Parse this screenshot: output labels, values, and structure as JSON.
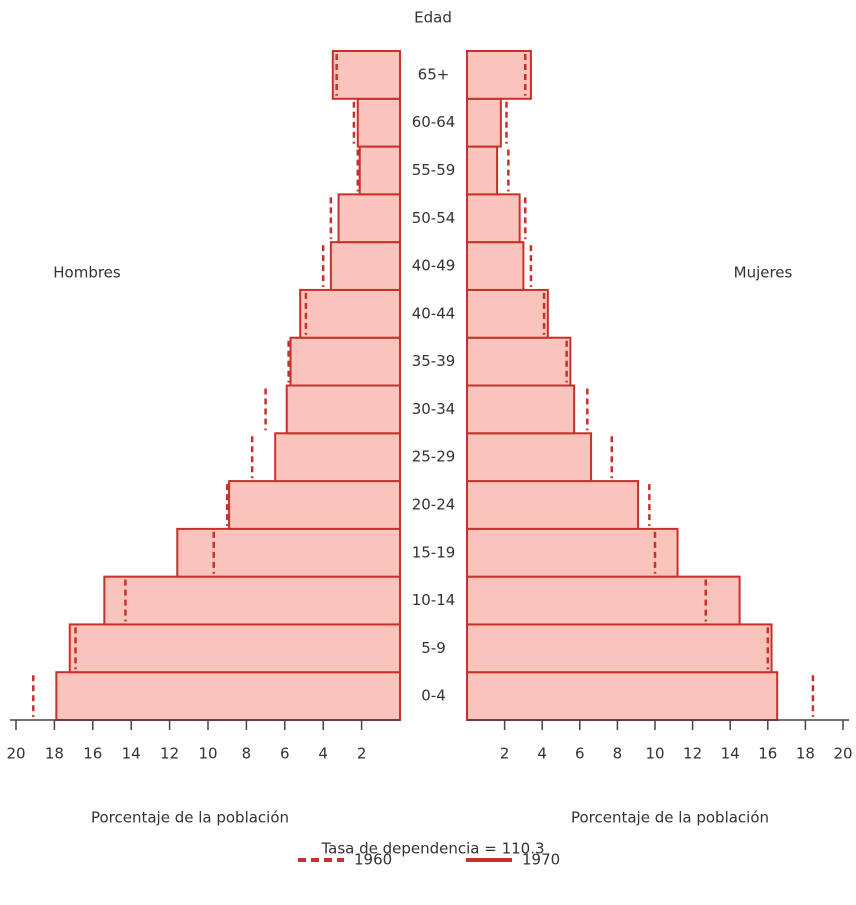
{
  "chart_data": {
    "type": "pyramid",
    "title": "Edad",
    "left_label": "Hombres",
    "right_label": "Mujeres",
    "xlabel_left": "Porcentaje de la población",
    "xlabel_right": "Porcentaje de la población",
    "annotation": "Tasa de dependencia = 110.3",
    "categories": [
      "0-4",
      "5-9",
      "10-14",
      "15-19",
      "20-24",
      "25-29",
      "30-34",
      "35-39",
      "40-44",
      "40-49",
      "50-54",
      "55-59",
      "60-64",
      "65+"
    ],
    "xlim": [
      0,
      20
    ],
    "xticks": [
      2,
      4,
      6,
      8,
      10,
      12,
      14,
      16,
      18,
      20
    ],
    "series": [
      {
        "name": "1960",
        "color": "#c8302c",
        "dashed": true,
        "values": {
          "hombres": [
            19.1,
            16.9,
            14.3,
            9.7,
            9.0,
            7.7,
            7.0,
            5.8,
            4.9,
            4.0,
            3.6,
            2.2,
            2.4,
            3.3
          ],
          "mujeres": [
            18.4,
            16.0,
            12.7,
            10.0,
            9.7,
            7.7,
            6.4,
            5.3,
            4.1,
            3.4,
            3.1,
            2.2,
            2.1,
            3.1
          ]
        }
      },
      {
        "name": "1970",
        "color": "#c8302c",
        "fill": "#f9c4bb",
        "dashed": false,
        "values": {
          "hombres": [
            17.9,
            17.2,
            15.4,
            11.6,
            8.9,
            6.5,
            5.9,
            5.7,
            5.2,
            3.6,
            3.2,
            2.1,
            2.2,
            3.5
          ],
          "mujeres": [
            16.5,
            16.2,
            14.5,
            11.2,
            9.1,
            6.6,
            5.7,
            5.5,
            4.3,
            3.0,
            2.8,
            1.6,
            1.8,
            3.4
          ]
        }
      }
    ]
  }
}
